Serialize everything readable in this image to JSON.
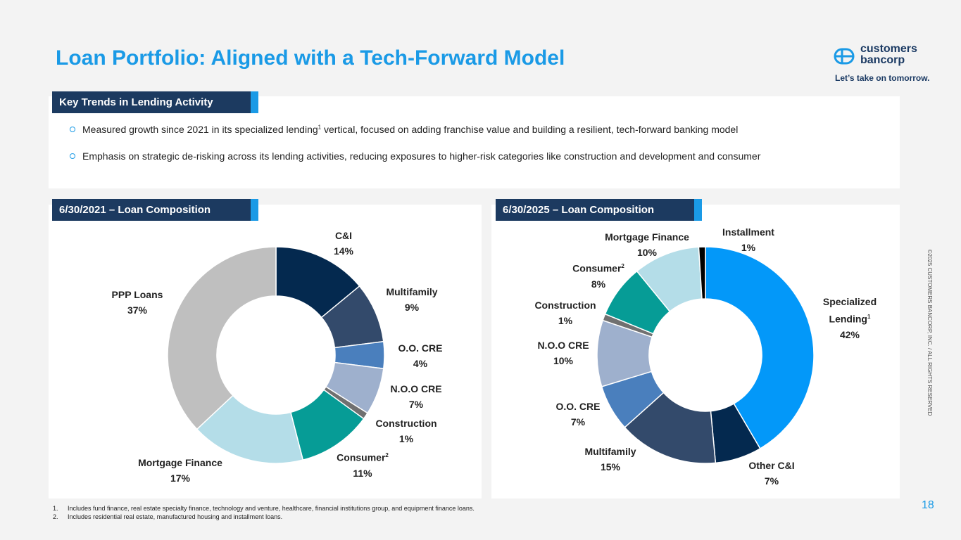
{
  "title": "Loan Portfolio: Aligned with a Tech-Forward Model",
  "logo": {
    "line1": "customers",
    "line2": "bancorp",
    "tagline": "Let’s take on tomorrow."
  },
  "trends": {
    "heading": "Key Trends in Lending Activity",
    "bullet1_a": "Measured growth since 2021 in its specialized lending",
    "bullet1_sup": "1",
    "bullet1_b": " vertical, focused on adding franchise value and building a resilient, tech-forward banking model",
    "bullet2": "Emphasis on strategic de-risking across its lending activities, reducing exposures to higher-risk categories like construction and development and consumer"
  },
  "chart_data": [
    {
      "type": "pie",
      "title": "6/30/2021 – Loan Composition",
      "slices": [
        {
          "name": "C&I",
          "value": 14,
          "label": "14%",
          "color": "#04294f"
        },
        {
          "name": "Multifamily",
          "value": 9,
          "label": "9%",
          "color": "#334a6b"
        },
        {
          "name": "O.O. CRE",
          "value": 4,
          "label": "4%",
          "color": "#4a7fbd"
        },
        {
          "name": "N.O.O CRE",
          "value": 7,
          "label": "7%",
          "color": "#9eb0cd"
        },
        {
          "name": "Construction",
          "value": 1,
          "label": "1%",
          "color": "#707070"
        },
        {
          "name": "Consumer",
          "sup": "2",
          "value": 11,
          "label": "11%",
          "color": "#069c96"
        },
        {
          "name": "Mortgage Finance",
          "value": 17,
          "label": "17%",
          "color": "#b4dde8"
        },
        {
          "name": "PPP Loans",
          "value": 37,
          "label": "37%",
          "color": "#bfbfbf"
        }
      ]
    },
    {
      "type": "pie",
      "title": "6/30/2025 – Loan Composition",
      "slices": [
        {
          "name": "Specialized Lending",
          "sup": "1",
          "value": 42,
          "label": "42%",
          "color": "#0398f9"
        },
        {
          "name": "Other C&I",
          "value": 7,
          "label": "7%",
          "color": "#04294f"
        },
        {
          "name": "Multifamily",
          "value": 15,
          "label": "15%",
          "color": "#334a6b"
        },
        {
          "name": "O.O. CRE",
          "value": 7,
          "label": "7%",
          "color": "#4a7fbd"
        },
        {
          "name": "N.O.O CRE",
          "value": 10,
          "label": "10%",
          "color": "#9eb0cd"
        },
        {
          "name": "Construction",
          "value": 1,
          "label": "1%",
          "color": "#707070"
        },
        {
          "name": "Consumer",
          "sup": "2",
          "value": 8,
          "label": "8%",
          "color": "#069c96"
        },
        {
          "name": "Mortgage Finance",
          "value": 10,
          "label": "10%",
          "color": "#b4dde8"
        },
        {
          "name": "Installment",
          "value": 1,
          "label": "1%",
          "color": "#000000"
        }
      ]
    }
  ],
  "footnotes": [
    {
      "num": "1.",
      "text": "Includes fund finance, real estate specialty finance, technology and venture, healthcare, financial institutions group, and equipment finance loans."
    },
    {
      "num": "2.",
      "text": "Includes residential real estate, manufactured housing and installment loans."
    }
  ],
  "page_number": "18",
  "copyright": "©2025 CUSTOMERS BANCORP, INC. / ALL RIGHTS RESERVED"
}
